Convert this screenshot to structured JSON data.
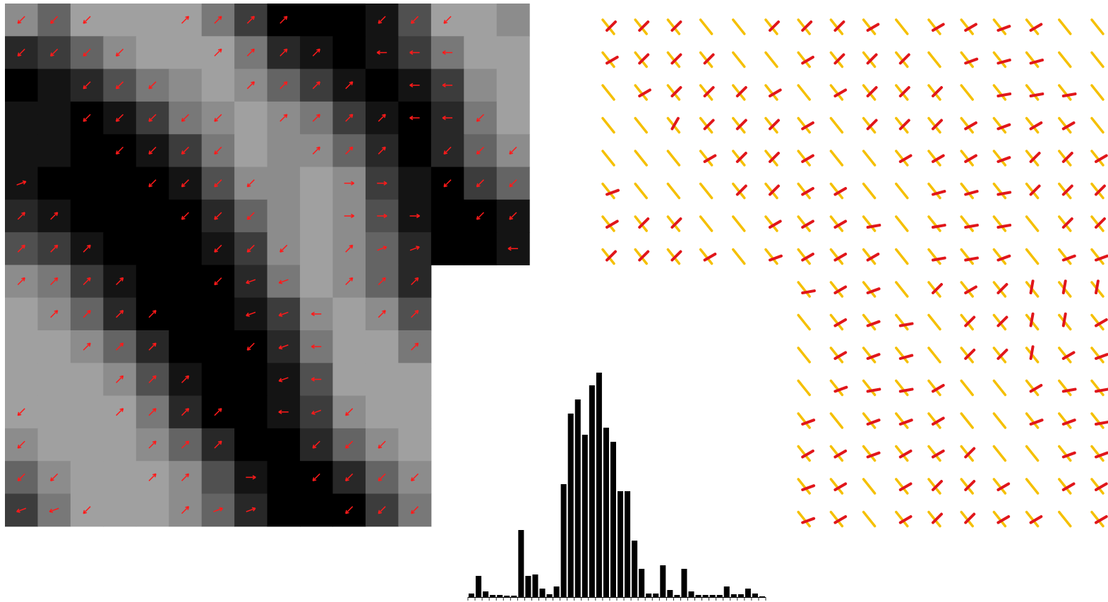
{
  "image": {
    "levels": [
      [
        7,
        5,
        8,
        8,
        8,
        8,
        6,
        3,
        0,
        0,
        0,
        1,
        4,
        8,
        8,
        7
      ],
      [
        2,
        3,
        5,
        7,
        8,
        8,
        8,
        6,
        2,
        1,
        0,
        1,
        3,
        6,
        8,
        8
      ],
      [
        0,
        1,
        2,
        4,
        6,
        7,
        8,
        7,
        5,
        3,
        1,
        0,
        1,
        3,
        7,
        8
      ],
      [
        1,
        1,
        0,
        1,
        3,
        6,
        7,
        8,
        7,
        6,
        3,
        1,
        0,
        2,
        6,
        8
      ],
      [
        1,
        1,
        0,
        0,
        1,
        3,
        6,
        8,
        7,
        7,
        5,
        2,
        0,
        2,
        5,
        7
      ],
      [
        1,
        0,
        0,
        0,
        0,
        1,
        4,
        7,
        7,
        8,
        7,
        3,
        1,
        0,
        3,
        5
      ],
      [
        2,
        1,
        0,
        0,
        0,
        0,
        2,
        5,
        7,
        8,
        7,
        4,
        1,
        0,
        0,
        1
      ],
      [
        4,
        3,
        1,
        0,
        0,
        0,
        1,
        3,
        7,
        8,
        7,
        5,
        2,
        0,
        0,
        1
      ],
      [
        7,
        6,
        3,
        1,
        0,
        0,
        0,
        2,
        6,
        8,
        7,
        5,
        2
      ],
      [
        8,
        7,
        5,
        2,
        0,
        0,
        0,
        1,
        3,
        7,
        8,
        7,
        4
      ],
      [
        8,
        8,
        7,
        5,
        2,
        0,
        0,
        0,
        2,
        6,
        8,
        8,
        6
      ],
      [
        8,
        8,
        8,
        7,
        4,
        1,
        0,
        0,
        1,
        4,
        8,
        8,
        8
      ],
      [
        8,
        8,
        8,
        8,
        6,
        2,
        0,
        0,
        1,
        3,
        7,
        8,
        8
      ],
      [
        7,
        8,
        8,
        8,
        7,
        5,
        2,
        0,
        0,
        2,
        5,
        7,
        8
      ],
      [
        5,
        7,
        8,
        8,
        8,
        7,
        4,
        1,
        0,
        0,
        2,
        5,
        7
      ],
      [
        3,
        6,
        8,
        8,
        8,
        7,
        5,
        2,
        0,
        0,
        0,
        3,
        6
      ]
    ],
    "arrows": [
      [
        225,
        225,
        225,
        null,
        null,
        45,
        45,
        45,
        45,
        null,
        null,
        225,
        225,
        225,
        null,
        null
      ],
      [
        225,
        225,
        225,
        225,
        null,
        null,
        45,
        45,
        45,
        45,
        null,
        180,
        180,
        180,
        null,
        null
      ],
      [
        null,
        null,
        225,
        225,
        225,
        null,
        null,
        45,
        45,
        45,
        45,
        null,
        180,
        180,
        null,
        null
      ],
      [
        null,
        null,
        225,
        225,
        225,
        225,
        225,
        null,
        45,
        45,
        45,
        45,
        180,
        180,
        225,
        null
      ],
      [
        null,
        null,
        null,
        225,
        225,
        225,
        225,
        null,
        null,
        45,
        45,
        45,
        null,
        225,
        225,
        225
      ],
      [
        20,
        null,
        null,
        null,
        225,
        225,
        225,
        225,
        null,
        null,
        0,
        0,
        null,
        225,
        225,
        225
      ],
      [
        45,
        45,
        null,
        null,
        null,
        225,
        225,
        225,
        null,
        null,
        0,
        0,
        0,
        null,
        225,
        225
      ],
      [
        45,
        45,
        45,
        null,
        null,
        null,
        225,
        225,
        225,
        null,
        45,
        20,
        20,
        null,
        null,
        180
      ],
      [
        45,
        45,
        45,
        45,
        null,
        null,
        225,
        200,
        200,
        null,
        45,
        45,
        45
      ],
      [
        null,
        45,
        45,
        45,
        45,
        null,
        null,
        200,
        200,
        180,
        null,
        45,
        45
      ],
      [
        null,
        null,
        45,
        45,
        45,
        null,
        null,
        225,
        200,
        180,
        null,
        null,
        45
      ],
      [
        null,
        null,
        null,
        45,
        45,
        45,
        null,
        null,
        200,
        180,
        null,
        null,
        null
      ],
      [
        225,
        null,
        null,
        45,
        45,
        45,
        45,
        null,
        180,
        200,
        225,
        null,
        null
      ],
      [
        225,
        null,
        null,
        null,
        45,
        45,
        45,
        null,
        null,
        225,
        225,
        225,
        null
      ],
      [
        225,
        225,
        null,
        null,
        45,
        45,
        null,
        0,
        null,
        225,
        225,
        225,
        225
      ],
      [
        200,
        200,
        225,
        null,
        null,
        45,
        20,
        20,
        null,
        null,
        225,
        225,
        225
      ]
    ]
  },
  "glyphs": {
    "red_angles": [
      [
        45,
        45,
        45,
        null,
        null,
        45,
        45,
        45,
        30,
        null,
        30,
        30,
        20,
        30,
        null,
        null
      ],
      [
        30,
        45,
        45,
        45,
        null,
        null,
        30,
        45,
        45,
        45,
        null,
        20,
        15,
        15,
        null,
        null
      ],
      [
        null,
        30,
        45,
        45,
        45,
        30,
        null,
        30,
        45,
        45,
        45,
        null,
        10,
        10,
        10,
        null
      ],
      [
        null,
        null,
        60,
        45,
        45,
        45,
        30,
        null,
        45,
        45,
        45,
        30,
        20,
        30,
        30,
        null
      ],
      [
        null,
        null,
        null,
        30,
        45,
        45,
        30,
        null,
        null,
        30,
        30,
        30,
        20,
        45,
        45,
        30
      ],
      [
        20,
        null,
        null,
        null,
        45,
        45,
        30,
        30,
        null,
        null,
        15,
        15,
        10,
        45,
        45,
        45
      ],
      [
        30,
        45,
        45,
        null,
        null,
        30,
        30,
        30,
        10,
        null,
        10,
        10,
        10,
        null,
        45,
        45
      ],
      [
        45,
        45,
        45,
        30,
        null,
        20,
        30,
        30,
        30,
        null,
        10,
        10,
        20,
        null,
        20,
        20
      ],
      [
        10,
        30,
        20,
        null,
        45,
        30,
        45,
        80,
        80,
        80
      ],
      [
        null,
        30,
        20,
        10,
        null,
        45,
        45,
        80,
        80,
        30
      ],
      [
        null,
        30,
        20,
        15,
        null,
        45,
        45,
        80,
        30,
        20
      ],
      [
        null,
        20,
        10,
        10,
        30,
        null,
        null,
        30,
        10,
        10
      ],
      [
        20,
        null,
        20,
        20,
        30,
        null,
        null,
        20,
        20,
        10
      ],
      [
        30,
        30,
        20,
        30,
        30,
        45,
        null,
        null,
        20,
        20
      ],
      [
        20,
        30,
        null,
        30,
        45,
        45,
        30,
        null,
        30,
        30
      ],
      [
        20,
        30,
        null,
        30,
        45,
        45,
        30,
        30,
        null,
        30
      ]
    ]
  },
  "histogram": {
    "type": "histogram",
    "counts": [
      5,
      30,
      8,
      3,
      3,
      2,
      2,
      95,
      30,
      32,
      12,
      4,
      15,
      160,
      260,
      280,
      230,
      300,
      318,
      240,
      220,
      150,
      150,
      80,
      40,
      5,
      5,
      45,
      10,
      3,
      40,
      8,
      3,
      3,
      3,
      3,
      15,
      4,
      4,
      12,
      5,
      1
    ],
    "bins": [
      0,
      1,
      2,
      3,
      4,
      5,
      6,
      7,
      8,
      9,
      10,
      11,
      12,
      13,
      14,
      15,
      16,
      17,
      18,
      19,
      20,
      21,
      22,
      23,
      24,
      25,
      26,
      27,
      28,
      29,
      30,
      31,
      32,
      33,
      34,
      35,
      36,
      37,
      38,
      39,
      40,
      41,
      42
    ],
    "xlim": [
      0,
      42
    ],
    "ylim": [
      0,
      320
    ],
    "color": "#000000"
  }
}
